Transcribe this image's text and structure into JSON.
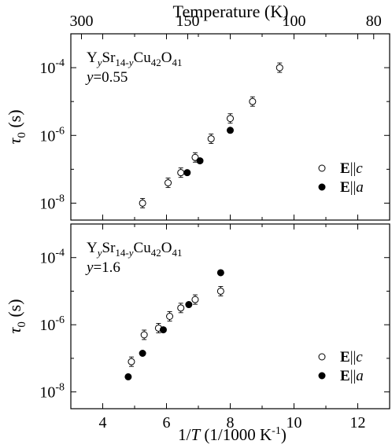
{
  "chart_data": [
    {
      "type": "scatter",
      "panel": "top",
      "log_y": true,
      "ylim_exp": [
        -8.5,
        -3.0
      ],
      "y_ticks_exp": [
        -8,
        -6,
        -4
      ],
      "xlim": [
        3.0,
        13.0
      ],
      "x_ticks": [
        4,
        6,
        8,
        10,
        12
      ],
      "top_axis": {
        "label": "Temperature (K)",
        "ticks": [
          {
            "label": "300",
            "temperature": 300
          },
          {
            "label": "150",
            "temperature": 150
          },
          {
            "label": "100",
            "temperature": 100
          },
          {
            "label": "80",
            "temperature": 80
          }
        ]
      },
      "ylabel": "τ0 (s)",
      "annotation": {
        "formula": "YySr14-yCu42O41",
        "param": "y=0.55"
      },
      "legend": [
        {
          "label": "E||c",
          "marker": "open-circle"
        },
        {
          "label": "E||a",
          "marker": "filled-circle"
        }
      ],
      "legend_position": "lower-right",
      "series": [
        {
          "name": "E||c",
          "marker": "open-circle",
          "points": [
            {
              "x": 5.25,
              "y_exp": -8.0
            },
            {
              "x": 6.05,
              "y_exp": -7.4
            },
            {
              "x": 6.45,
              "y_exp": -7.1
            },
            {
              "x": 6.9,
              "y_exp": -6.65
            },
            {
              "x": 7.4,
              "y_exp": -6.1
            },
            {
              "x": 8.0,
              "y_exp": -5.5
            },
            {
              "x": 8.7,
              "y_exp": -5.0
            },
            {
              "x": 9.55,
              "y_exp": -4.0
            }
          ]
        },
        {
          "name": "E||a",
          "marker": "filled-circle",
          "points": [
            {
              "x": 6.65,
              "y_exp": -7.1
            },
            {
              "x": 7.05,
              "y_exp": -6.75
            },
            {
              "x": 8.0,
              "y_exp": -5.85
            }
          ]
        }
      ]
    },
    {
      "type": "scatter",
      "panel": "bottom",
      "log_y": true,
      "ylim_exp": [
        -8.5,
        -3.0
      ],
      "y_ticks_exp": [
        -8,
        -6,
        -4
      ],
      "xlim": [
        3.0,
        13.0
      ],
      "x_ticks": [
        4,
        6,
        8,
        10,
        12
      ],
      "xlabel": "1/T (1/1000 K-1)",
      "ylabel": "τ0 (s)",
      "annotation": {
        "formula": "YySr14-yCu42O41",
        "param": "y=1.6"
      },
      "legend": [
        {
          "label": "E||c",
          "marker": "open-circle"
        },
        {
          "label": "E||a",
          "marker": "filled-circle"
        }
      ],
      "legend_position": "lower-right",
      "series": [
        {
          "name": "E||c",
          "marker": "open-circle",
          "points": [
            {
              "x": 4.9,
              "y_exp": -7.1
            },
            {
              "x": 5.3,
              "y_exp": -6.3
            },
            {
              "x": 5.75,
              "y_exp": -6.1
            },
            {
              "x": 6.1,
              "y_exp": -5.75
            },
            {
              "x": 6.45,
              "y_exp": -5.5
            },
            {
              "x": 6.9,
              "y_exp": -5.25
            },
            {
              "x": 7.7,
              "y_exp": -5.0
            }
          ]
        },
        {
          "name": "E||a",
          "marker": "filled-circle",
          "points": [
            {
              "x": 4.8,
              "y_exp": -7.55
            },
            {
              "x": 5.25,
              "y_exp": -6.85
            },
            {
              "x": 5.9,
              "y_exp": -6.15
            },
            {
              "x": 6.7,
              "y_exp": -5.4
            },
            {
              "x": 7.7,
              "y_exp": -4.45
            }
          ]
        }
      ]
    }
  ]
}
